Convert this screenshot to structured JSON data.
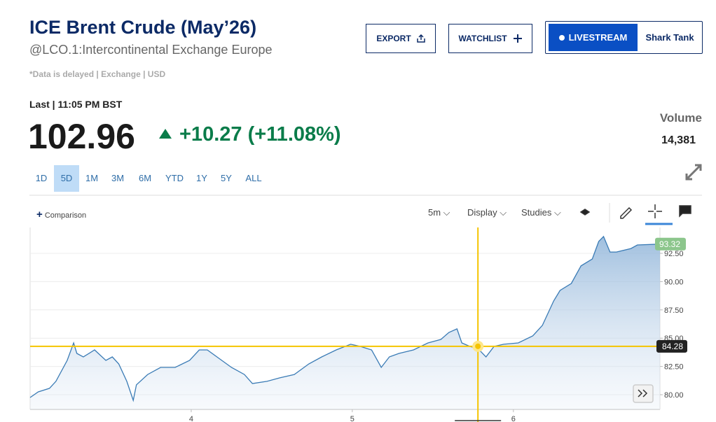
{
  "header": {
    "title": "ICE Brent Crude (May’26)",
    "subtitle": "@LCO.1:Intercontinental Exchange Europe",
    "disclaimer": "*Data is delayed | Exchange | USD"
  },
  "buttons": [
    "EXPORT",
    "WATCHLIST",
    "LIVESTREAM",
    "Shark Tank"
  ],
  "quote": {
    "last_label": "Last | 11:05 PM BST",
    "price": 102.96,
    "change": "+10.27 (+11.08%)",
    "volume_label": "Volume",
    "volume": "14,381"
  },
  "ranges": [
    "1D",
    "5D",
    "1M",
    "3M",
    "6M",
    "YTD",
    "1Y",
    "5Y",
    "ALL"
  ],
  "selected_range_index": 1,
  "toolbar": {
    "comparison": "Comparison",
    "interval": "5m",
    "display": "Display",
    "studies": "Studies"
  },
  "chart_data": {
    "type": "line",
    "x": [
      3.0,
      3.05,
      3.12,
      3.16,
      3.23,
      3.27,
      3.29,
      3.33,
      3.4,
      3.47,
      3.51,
      3.55,
      3.6,
      3.64,
      3.66,
      3.73,
      3.81,
      3.9,
      3.99,
      4.05,
      4.1,
      4.16,
      4.25,
      4.33,
      4.38,
      4.47,
      4.55,
      4.64,
      4.73,
      4.81,
      4.9,
      4.99,
      5.05,
      5.12,
      5.18,
      5.23,
      5.29,
      5.38,
      5.47,
      5.55,
      5.6,
      5.65,
      5.68,
      5.73,
      5.78,
      5.83,
      5.88,
      5.94,
      6.03,
      6.12,
      6.18,
      6.25,
      6.29,
      6.36,
      6.42,
      6.49,
      6.53,
      6.56,
      6.6,
      6.64,
      6.73,
      6.77,
      6.91
    ],
    "series": [
      {
        "name": "LCO.1",
        "color": "#3a7bb5",
        "values": [
          79.75,
          80.25,
          80.56,
          81.18,
          83.03,
          84.58,
          83.65,
          83.34,
          83.96,
          83.03,
          83.34,
          82.72,
          81.18,
          79.5,
          80.87,
          81.79,
          82.41,
          82.41,
          83.03,
          83.96,
          83.96,
          83.34,
          82.41,
          81.79,
          80.99,
          81.18,
          81.49,
          81.79,
          82.72,
          83.34,
          83.96,
          84.46,
          84.27,
          83.96,
          82.41,
          83.34,
          83.65,
          83.96,
          84.58,
          84.89,
          85.51,
          85.82,
          84.58,
          84.27,
          84.08,
          83.34,
          84.27,
          84.46,
          84.58,
          85.2,
          86.13,
          88.29,
          89.22,
          89.84,
          91.39,
          92.0,
          93.55,
          93.99,
          92.62,
          92.62,
          92.93,
          93.24,
          93.32
        ]
      }
    ],
    "xlim": [
      3.0,
      6.91
    ],
    "ylim": [
      78.7,
      94.79
    ],
    "xticks": [
      4,
      5,
      6
    ],
    "yticks": [
      {
        "value": 80,
        "label": "80.00"
      },
      {
        "value": 82.5,
        "label": "82.50"
      },
      {
        "value": 85,
        "label": "85.00"
      },
      {
        "value": 87.5,
        "label": "87.50"
      },
      {
        "value": 90,
        "label": "90.00"
      },
      {
        "value": 92.5,
        "label": "92.50"
      }
    ],
    "grid": true,
    "crosshair_x": 5.78,
    "crosshair_y": 84.28
  }
}
